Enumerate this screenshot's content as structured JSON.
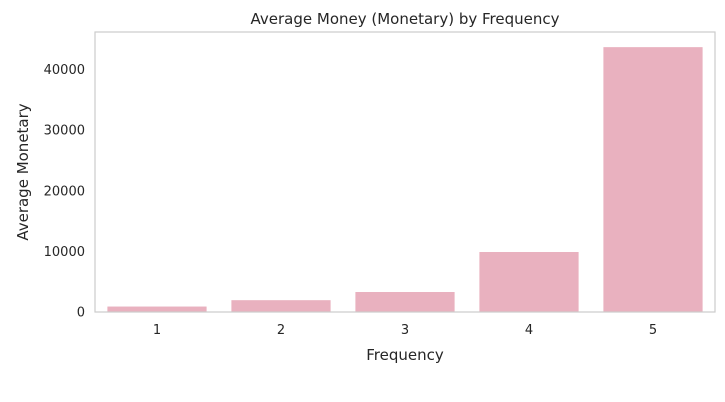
{
  "chart_data": {
    "type": "bar",
    "title": "Average Money (Monetary) by Frequency",
    "xlabel": "Frequency",
    "ylabel": "Average Monetary",
    "categories": [
      "1",
      "2",
      "3",
      "4",
      "5"
    ],
    "values": [
      900,
      1950,
      3300,
      9900,
      43700
    ],
    "ylim": [
      0,
      46200
    ],
    "yticks": [
      0,
      10000,
      20000,
      30000,
      40000
    ],
    "grid": false,
    "colors": {
      "bar": "#e9b1bf",
      "axes": "#cccccc",
      "text": "#262626",
      "background": "#ffffff"
    }
  }
}
